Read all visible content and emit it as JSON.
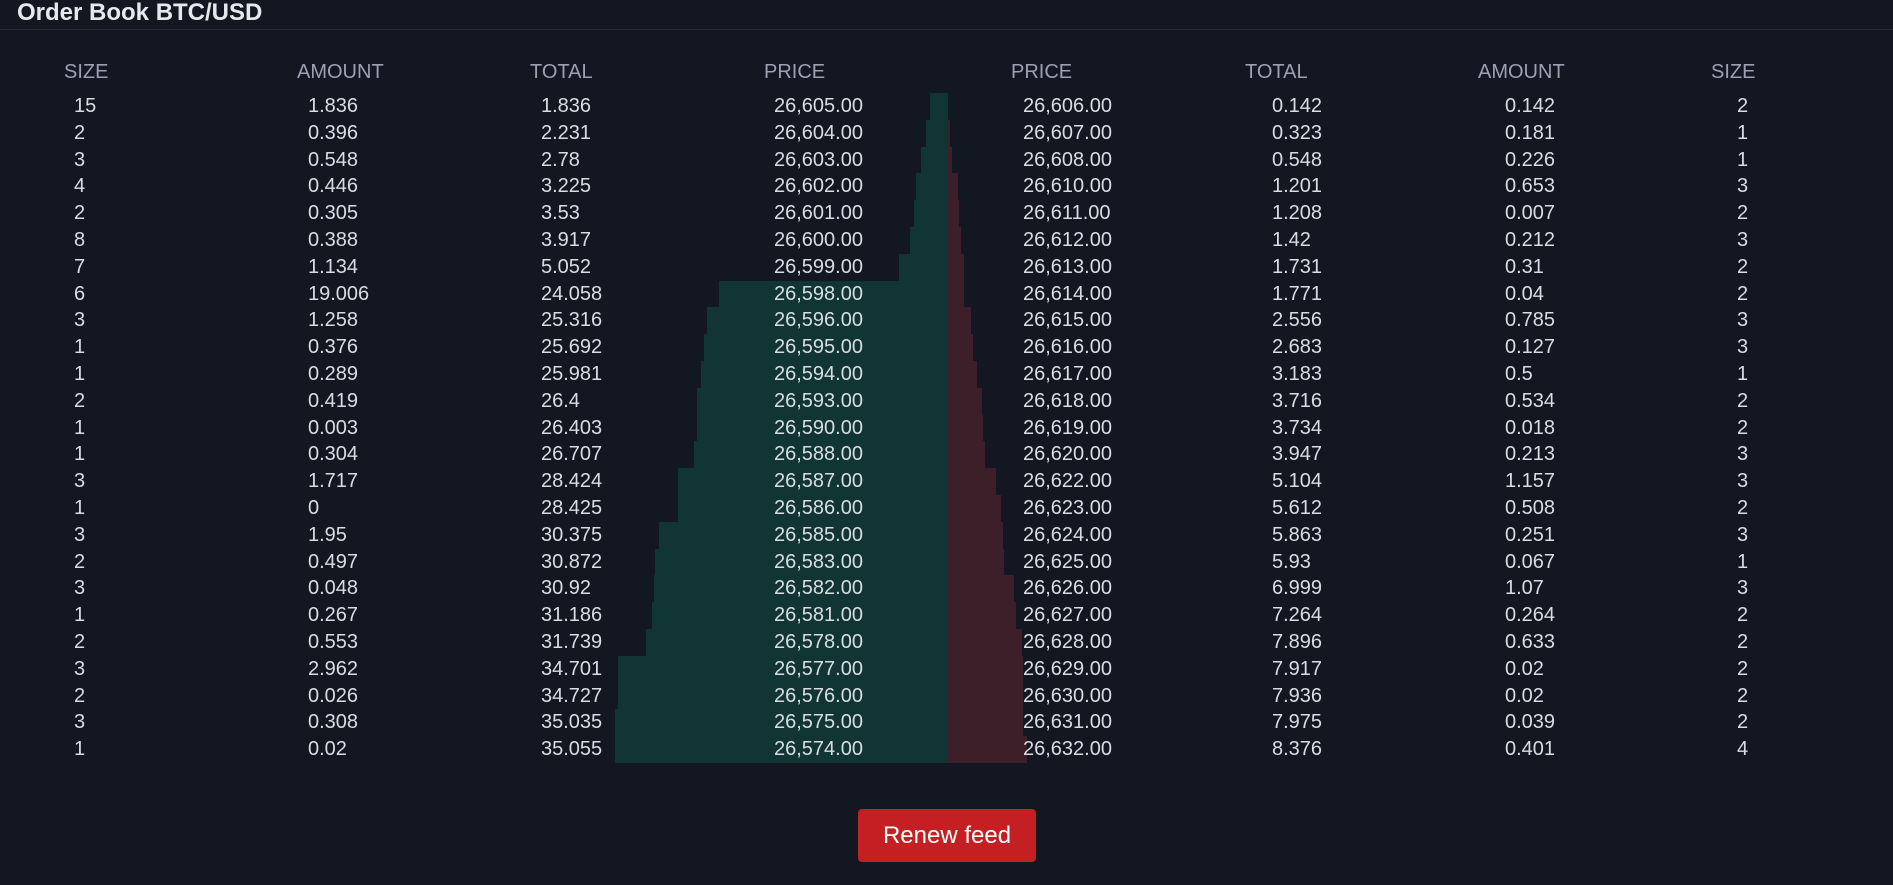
{
  "header": {
    "title": "Order Book BTC/USD"
  },
  "bid_columns": {
    "size": "SIZE",
    "amount": "AMOUNT",
    "total": "TOTAL",
    "price": "PRICE"
  },
  "ask_columns": {
    "price": "PRICE",
    "total": "TOTAL",
    "amount": "AMOUNT",
    "size": "SIZE"
  },
  "bids": [
    {
      "size": "15",
      "amount": "1.836",
      "total": "1.836",
      "price": "26,605.00",
      "depth": 1.836
    },
    {
      "size": "2",
      "amount": "0.396",
      "total": "2.231",
      "price": "26,604.00",
      "depth": 2.231
    },
    {
      "size": "3",
      "amount": "0.548",
      "total": "2.78",
      "price": "26,603.00",
      "depth": 2.78
    },
    {
      "size": "4",
      "amount": "0.446",
      "total": "3.225",
      "price": "26,602.00",
      "depth": 3.225
    },
    {
      "size": "2",
      "amount": "0.305",
      "total": "3.53",
      "price": "26,601.00",
      "depth": 3.53
    },
    {
      "size": "8",
      "amount": "0.388",
      "total": "3.917",
      "price": "26,600.00",
      "depth": 3.917
    },
    {
      "size": "7",
      "amount": "1.134",
      "total": "5.052",
      "price": "26,599.00",
      "depth": 5.052
    },
    {
      "size": "6",
      "amount": "19.006",
      "total": "24.058",
      "price": "26,598.00",
      "depth": 24.058
    },
    {
      "size": "3",
      "amount": "1.258",
      "total": "25.316",
      "price": "26,596.00",
      "depth": 25.316
    },
    {
      "size": "1",
      "amount": "0.376",
      "total": "25.692",
      "price": "26,595.00",
      "depth": 25.692
    },
    {
      "size": "1",
      "amount": "0.289",
      "total": "25.981",
      "price": "26,594.00",
      "depth": 25.981
    },
    {
      "size": "2",
      "amount": "0.419",
      "total": "26.4",
      "price": "26,593.00",
      "depth": 26.4
    },
    {
      "size": "1",
      "amount": "0.003",
      "total": "26.403",
      "price": "26,590.00",
      "depth": 26.403
    },
    {
      "size": "1",
      "amount": "0.304",
      "total": "26.707",
      "price": "26,588.00",
      "depth": 26.707
    },
    {
      "size": "3",
      "amount": "1.717",
      "total": "28.424",
      "price": "26,587.00",
      "depth": 28.424
    },
    {
      "size": "1",
      "amount": "0",
      "total": "28.425",
      "price": "26,586.00",
      "depth": 28.425
    },
    {
      "size": "3",
      "amount": "1.95",
      "total": "30.375",
      "price": "26,585.00",
      "depth": 30.375
    },
    {
      "size": "2",
      "amount": "0.497",
      "total": "30.872",
      "price": "26,583.00",
      "depth": 30.872
    },
    {
      "size": "3",
      "amount": "0.048",
      "total": "30.92",
      "price": "26,582.00",
      "depth": 30.92
    },
    {
      "size": "1",
      "amount": "0.267",
      "total": "31.186",
      "price": "26,581.00",
      "depth": 31.186
    },
    {
      "size": "2",
      "amount": "0.553",
      "total": "31.739",
      "price": "26,578.00",
      "depth": 31.739
    },
    {
      "size": "3",
      "amount": "2.962",
      "total": "34.701",
      "price": "26,577.00",
      "depth": 34.701
    },
    {
      "size": "2",
      "amount": "0.026",
      "total": "34.727",
      "price": "26,576.00",
      "depth": 34.727
    },
    {
      "size": "3",
      "amount": "0.308",
      "total": "35.035",
      "price": "26,575.00",
      "depth": 35.035
    },
    {
      "size": "1",
      "amount": "0.02",
      "total": "35.055",
      "price": "26,574.00",
      "depth": 35.055
    }
  ],
  "asks": [
    {
      "price": "26,606.00",
      "total": "0.142",
      "amount": "0.142",
      "size": "2",
      "depth": 0.142
    },
    {
      "price": "26,607.00",
      "total": "0.323",
      "amount": "0.181",
      "size": "1",
      "depth": 0.323
    },
    {
      "price": "26,608.00",
      "total": "0.548",
      "amount": "0.226",
      "size": "1",
      "depth": 0.548
    },
    {
      "price": "26,610.00",
      "total": "1.201",
      "amount": "0.653",
      "size": "3",
      "depth": 1.201
    },
    {
      "price": "26,611.00",
      "total": "1.208",
      "amount": "0.007",
      "size": "2",
      "depth": 1.208
    },
    {
      "price": "26,612.00",
      "total": "1.42",
      "amount": "0.212",
      "size": "3",
      "depth": 1.42
    },
    {
      "price": "26,613.00",
      "total": "1.731",
      "amount": "0.31",
      "size": "2",
      "depth": 1.731
    },
    {
      "price": "26,614.00",
      "total": "1.771",
      "amount": "0.04",
      "size": "2",
      "depth": 1.771
    },
    {
      "price": "26,615.00",
      "total": "2.556",
      "amount": "0.785",
      "size": "3",
      "depth": 2.556
    },
    {
      "price": "26,616.00",
      "total": "2.683",
      "amount": "0.127",
      "size": "3",
      "depth": 2.683
    },
    {
      "price": "26,617.00",
      "total": "3.183",
      "amount": "0.5",
      "size": "1",
      "depth": 3.183
    },
    {
      "price": "26,618.00",
      "total": "3.716",
      "amount": "0.534",
      "size": "2",
      "depth": 3.716
    },
    {
      "price": "26,619.00",
      "total": "3.734",
      "amount": "0.018",
      "size": "2",
      "depth": 3.734
    },
    {
      "price": "26,620.00",
      "total": "3.947",
      "amount": "0.213",
      "size": "3",
      "depth": 3.947
    },
    {
      "price": "26,622.00",
      "total": "5.104",
      "amount": "1.157",
      "size": "3",
      "depth": 5.104
    },
    {
      "price": "26,623.00",
      "total": "5.612",
      "amount": "0.508",
      "size": "2",
      "depth": 5.612
    },
    {
      "price": "26,624.00",
      "total": "5.863",
      "amount": "0.251",
      "size": "3",
      "depth": 5.863
    },
    {
      "price": "26,625.00",
      "total": "5.93",
      "amount": "0.067",
      "size": "1",
      "depth": 5.93
    },
    {
      "price": "26,626.00",
      "total": "6.999",
      "amount": "1.07",
      "size": "3",
      "depth": 6.999
    },
    {
      "price": "26,627.00",
      "total": "7.264",
      "amount": "0.264",
      "size": "2",
      "depth": 7.264
    },
    {
      "price": "26,628.00",
      "total": "7.896",
      "amount": "0.633",
      "size": "2",
      "depth": 7.896
    },
    {
      "price": "26,629.00",
      "total": "7.917",
      "amount": "0.02",
      "size": "2",
      "depth": 7.917
    },
    {
      "price": "26,630.00",
      "total": "7.936",
      "amount": "0.02",
      "size": "2",
      "depth": 7.936
    },
    {
      "price": "26,631.00",
      "total": "7.975",
      "amount": "0.039",
      "size": "2",
      "depth": 7.975
    },
    {
      "price": "26,632.00",
      "total": "8.376",
      "amount": "0.401",
      "size": "4",
      "depth": 8.376
    }
  ],
  "actions": {
    "renew_label": "Renew feed"
  },
  "colors": {
    "background": "#131722",
    "bid_depth": "#113534",
    "ask_depth": "#3d1f2a",
    "button": "#c41f22",
    "text": "#d9dce3",
    "header_text": "#9aa1b2"
  }
}
